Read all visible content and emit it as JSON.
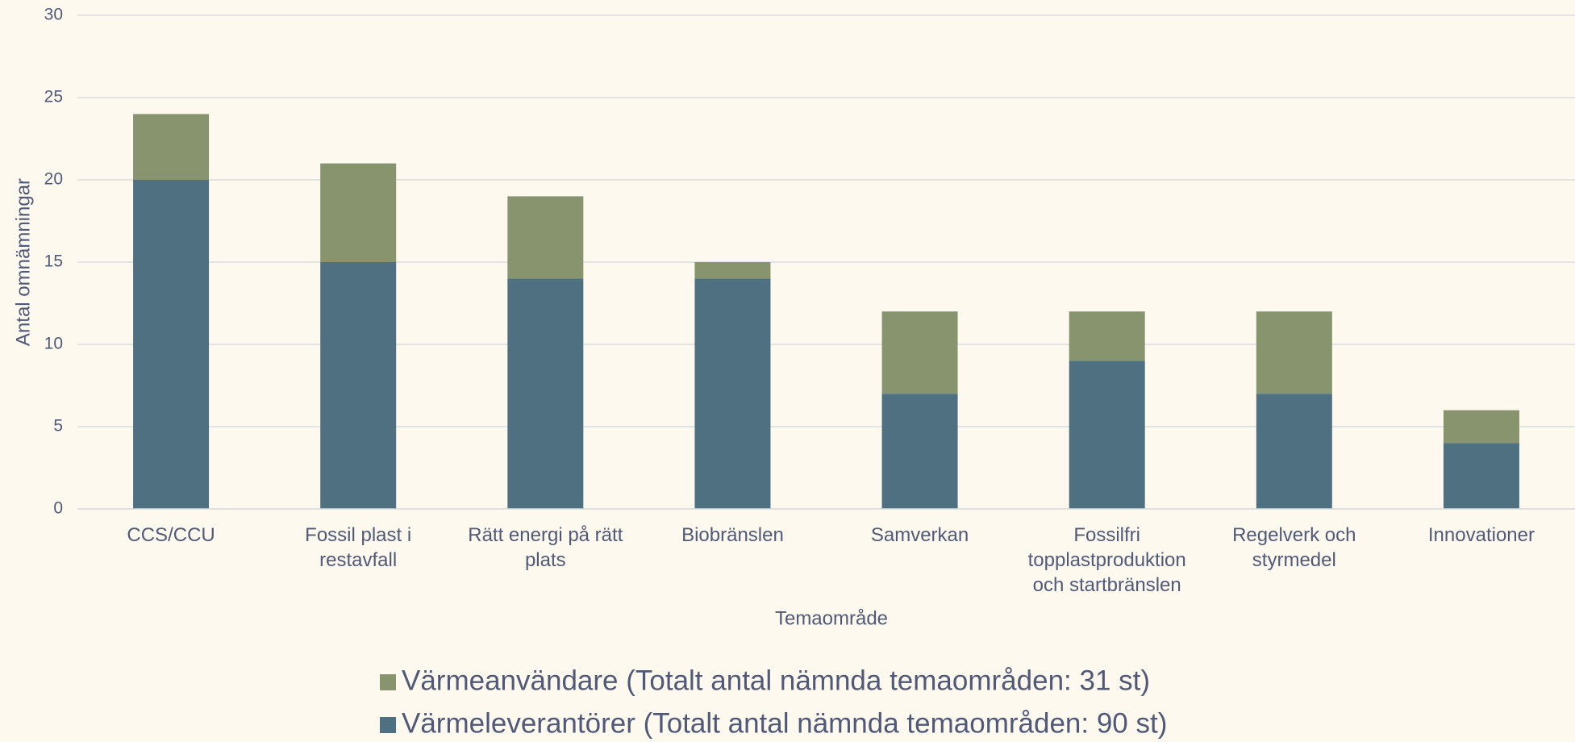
{
  "chart_data": {
    "type": "stacked_bar",
    "ylabel": "Antal omnämningar",
    "xlabel": "Temaområde",
    "categories": [
      "CCS/CCU",
      "Fossil plast i restavfall",
      "Rätt energi på rätt plats",
      "Biobränslen",
      "Samverkan",
      "Fossilfri topplastproduktion och startbränslen",
      "Regelverk och styrmedel",
      "Innovationer"
    ],
    "series": [
      {
        "name": "Värmeleverantörer (Totalt antal nämnda temaområden: 90 st)",
        "color": "#4f7080",
        "values": [
          20,
          15,
          14,
          14,
          7,
          9,
          7,
          4
        ]
      },
      {
        "name": "Värmeanvändare (Totalt antal nämnda temaområden: 31 st)",
        "color": "#87946e",
        "values": [
          4,
          6,
          5,
          1,
          5,
          3,
          5,
          2
        ]
      }
    ],
    "ylim": [
      0,
      30
    ],
    "yticks": [
      0,
      5,
      10,
      15,
      20,
      25,
      30
    ],
    "grid": true
  }
}
